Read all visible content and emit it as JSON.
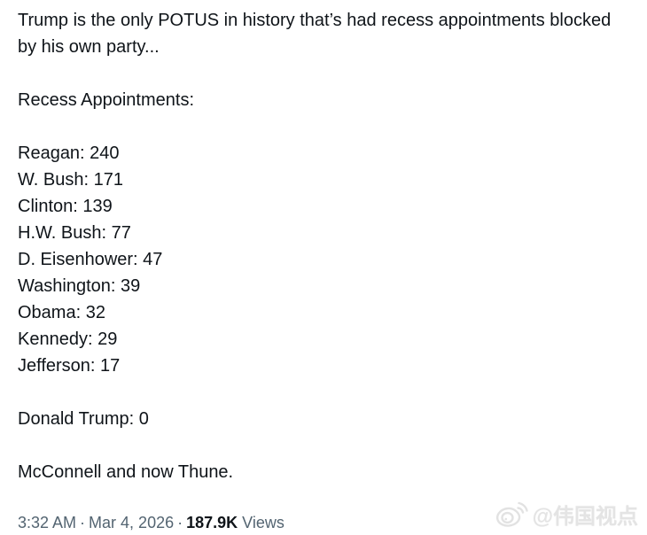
{
  "post": {
    "body": {
      "intro": "Trump is the only POTUS in history that’s had recess appointments blocked by his own party...",
      "heading": "Recess Appointments:",
      "recess_appointments": [
        {
          "president": "Reagan",
          "count": "240"
        },
        {
          "president": "W. Bush",
          "count": "171"
        },
        {
          "president": "Clinton",
          "count": "139"
        },
        {
          "president": "H.W. Bush",
          "count": "77"
        },
        {
          "president": "D. Eisenhower",
          "count": "47"
        },
        {
          "president": "Washington",
          "count": "39"
        },
        {
          "president": "Obama",
          "count": "32"
        },
        {
          "president": "Kennedy",
          "count": "29"
        },
        {
          "president": "Jefferson",
          "count": "17"
        }
      ],
      "trump_line": {
        "president": "Donald Trump",
        "count": "0"
      },
      "closing": "McConnell and now Thune."
    },
    "meta": {
      "time": "3:32 AM",
      "date": "Mar 4, 2026",
      "separator": "·",
      "views_count": "187.9K",
      "views_label": "Views"
    },
    "watermark": {
      "handle": "@伟国视点",
      "icon": "weibo-logo-icon"
    }
  },
  "colors": {
    "background": "#ffffff",
    "text_primary": "#0f1419",
    "text_secondary": "#536471",
    "watermark": "#e4e4e4"
  }
}
